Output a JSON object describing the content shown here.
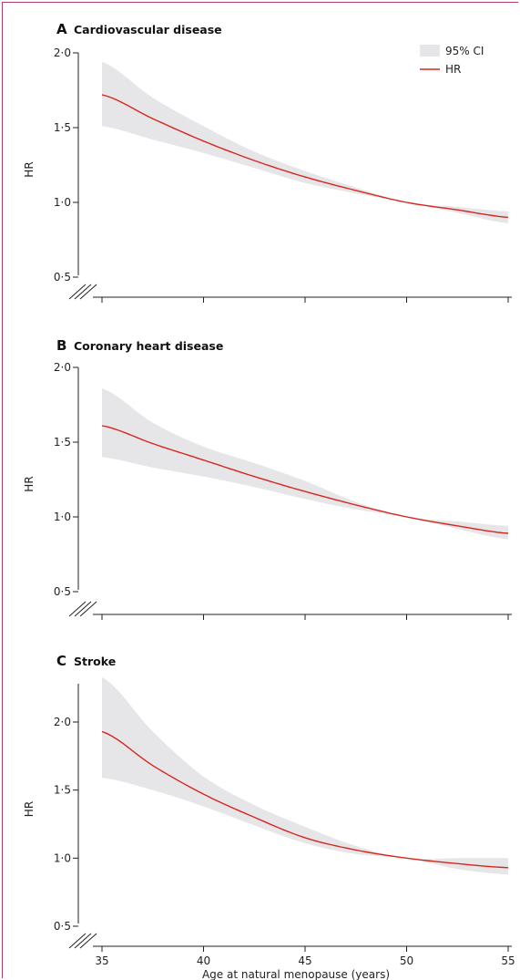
{
  "figure": {
    "xlabel": "Age at natural menopause (years)",
    "legend": {
      "ci_label": "95% CI",
      "hr_label": "HR",
      "ci_color": "#e6e6e8",
      "hr_color": "#d7261e"
    }
  },
  "chart_data": [
    {
      "type": "line",
      "panel_letter": "A",
      "title": "Cardiovascular disease",
      "xlabel": "",
      "ylabel": "HR",
      "xlim": [
        35,
        55
      ],
      "ylim": [
        0.5,
        2.0
      ],
      "yticks": [
        0.5,
        1.0,
        1.5,
        2.0
      ],
      "ytick_labels": [
        "0·5",
        "1·0",
        "1·5",
        "2·0"
      ],
      "xticks": [
        35,
        40,
        45,
        50,
        55
      ],
      "xtick_labels": [],
      "axis_break": true,
      "series": [
        {
          "name": "HR",
          "x": [
            35,
            37.5,
            40,
            42.5,
            45,
            47.5,
            50,
            52.5,
            55
          ],
          "y": [
            1.72,
            1.56,
            1.41,
            1.28,
            1.17,
            1.08,
            1.0,
            0.95,
            0.9
          ],
          "ci_lower": [
            1.51,
            1.42,
            1.33,
            1.23,
            1.13,
            1.06,
            1.0,
            0.93,
            0.86
          ],
          "ci_upper": [
            1.94,
            1.7,
            1.51,
            1.34,
            1.21,
            1.1,
            1.0,
            0.97,
            0.94
          ]
        }
      ]
    },
    {
      "type": "line",
      "panel_letter": "B",
      "title": "Coronary heart disease",
      "xlabel": "",
      "ylabel": "HR",
      "xlim": [
        35,
        55
      ],
      "ylim": [
        0.5,
        2.0
      ],
      "yticks": [
        0.5,
        1.0,
        1.5,
        2.0
      ],
      "ytick_labels": [
        "0·5",
        "1·0",
        "1·5",
        "2·0"
      ],
      "xticks": [
        35,
        40,
        45,
        50,
        55
      ],
      "xtick_labels": [],
      "axis_break": true,
      "series": [
        {
          "name": "HR",
          "x": [
            35,
            37.5,
            40,
            42.5,
            45,
            47.5,
            50,
            52.5,
            55
          ],
          "y": [
            1.61,
            1.49,
            1.38,
            1.27,
            1.17,
            1.08,
            1.0,
            0.94,
            0.89
          ],
          "ci_lower": [
            1.4,
            1.33,
            1.27,
            1.2,
            1.12,
            1.05,
            1.0,
            0.92,
            0.85
          ],
          "ci_upper": [
            1.86,
            1.63,
            1.47,
            1.36,
            1.24,
            1.1,
            1.0,
            0.97,
            0.94
          ]
        }
      ]
    },
    {
      "type": "line",
      "panel_letter": "C",
      "title": "Stroke",
      "xlabel": "Age at natural menopause (years)",
      "ylabel": "HR",
      "xlim": [
        35,
        55
      ],
      "ylim": [
        0.5,
        2.35
      ],
      "yticks": [
        0.5,
        1.0,
        1.5,
        2.0
      ],
      "ytick_labels": [
        "0·5",
        "1·0",
        "1·5",
        "2·0"
      ],
      "xticks": [
        35,
        40,
        45,
        50,
        55
      ],
      "xtick_labels": [
        "35",
        "40",
        "45",
        "50",
        "55"
      ],
      "axis_break": true,
      "series": [
        {
          "name": "HR",
          "x": [
            35,
            37.5,
            40,
            42.5,
            45,
            47.5,
            50,
            52.5,
            55
          ],
          "y": [
            1.93,
            1.68,
            1.47,
            1.3,
            1.15,
            1.06,
            1.0,
            0.96,
            0.93
          ],
          "ci_lower": [
            1.59,
            1.5,
            1.38,
            1.24,
            1.11,
            1.03,
            1.0,
            0.92,
            0.88
          ],
          "ci_upper": [
            2.33,
            1.93,
            1.6,
            1.39,
            1.23,
            1.09,
            1.0,
            1.0,
            1.0
          ]
        }
      ]
    }
  ]
}
